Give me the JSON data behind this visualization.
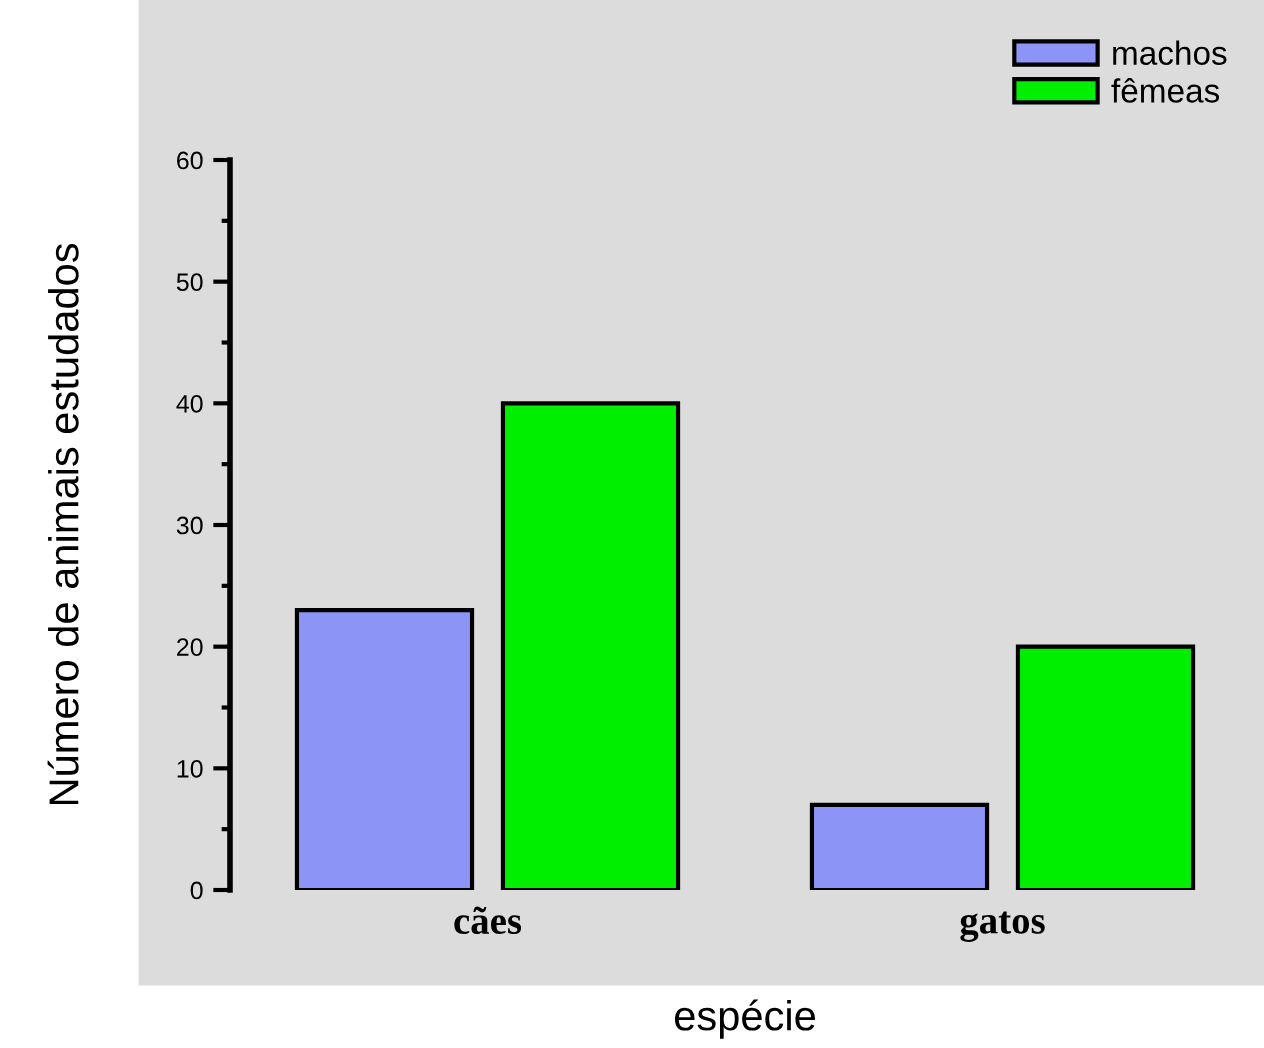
{
  "chart_data": {
    "type": "bar",
    "xlabel": "espécie",
    "ylabel": "Número de animais estudados",
    "categories": [
      "cães",
      "gatos"
    ],
    "series": [
      {
        "name": "machos",
        "color": "#8c94f5",
        "values": [
          23,
          7
        ]
      },
      {
        "name": "fêmeas",
        "color": "#00ee00",
        "values": [
          40,
          20
        ]
      }
    ],
    "ylim": [
      0,
      60
    ],
    "yticks": [
      0,
      10,
      20,
      30,
      40,
      50,
      60
    ],
    "grid": false,
    "legend": "top right"
  }
}
